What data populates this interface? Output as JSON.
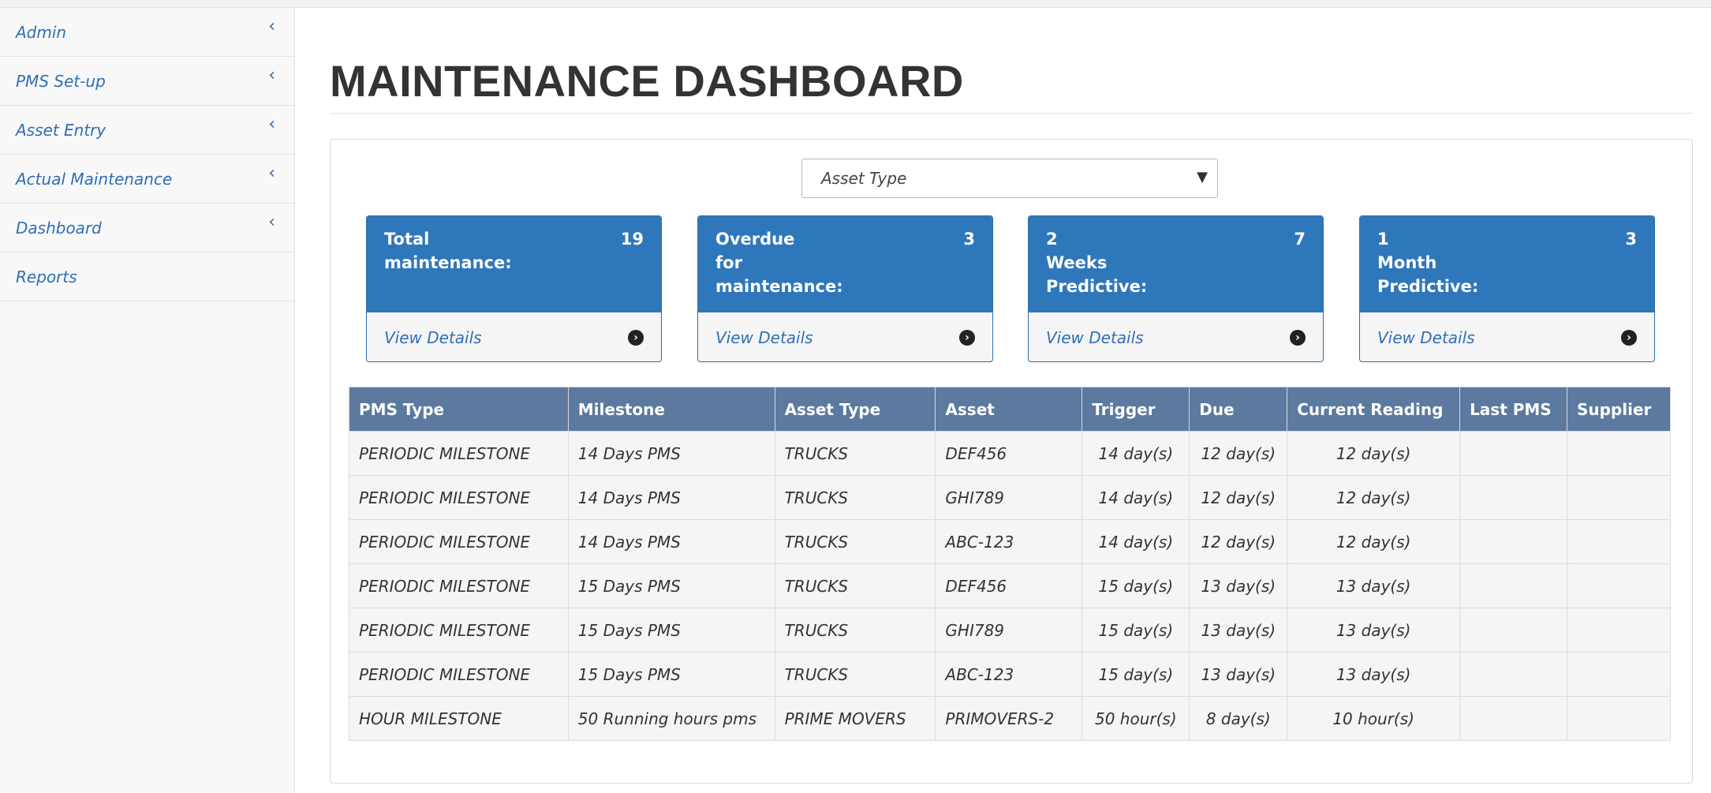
{
  "sidebar": {
    "items": [
      {
        "label": "Admin",
        "chevron": "‹"
      },
      {
        "label": "PMS Set-up",
        "chevron": "‹"
      },
      {
        "label": "Asset Entry",
        "chevron": "‹"
      },
      {
        "label": "Actual Maintenance",
        "chevron": "‹"
      },
      {
        "label": "Dashboard",
        "chevron": "‹"
      },
      {
        "label": "Reports",
        "chevron": ""
      }
    ]
  },
  "header": {
    "title": "MAINTENANCE DASHBOARD"
  },
  "filter": {
    "asset_type_value": "Asset Type"
  },
  "cards": [
    {
      "label": "Total\nmaintenance:",
      "count": "19",
      "link": "View Details"
    },
    {
      "label": "Overdue\nfor\nmaintenance:",
      "count": "3",
      "link": "View Details"
    },
    {
      "label": "2\nWeeks\nPredictive:",
      "count": "7",
      "link": "View Details"
    },
    {
      "label": "1\nMonth\nPredictive:",
      "count": "3",
      "link": "View Details"
    }
  ],
  "table": {
    "headers": [
      "PMS Type",
      "Milestone",
      "Asset Type",
      "Asset",
      "Trigger",
      "Due",
      "Current Reading",
      "Last PMS",
      "Supplier"
    ],
    "rows": [
      [
        "PERIODIC MILESTONE",
        "14 Days PMS",
        "TRUCKS",
        "DEF456",
        "14 day(s)",
        "12 day(s)",
        "12 day(s)",
        "",
        ""
      ],
      [
        "PERIODIC MILESTONE",
        "14 Days PMS",
        "TRUCKS",
        "GHI789",
        "14 day(s)",
        "12 day(s)",
        "12 day(s)",
        "",
        ""
      ],
      [
        "PERIODIC MILESTONE",
        "14 Days PMS",
        "TRUCKS",
        "ABC-123",
        "14 day(s)",
        "12 day(s)",
        "12 day(s)",
        "",
        ""
      ],
      [
        "PERIODIC MILESTONE",
        "15 Days PMS",
        "TRUCKS",
        "DEF456",
        "15 day(s)",
        "13 day(s)",
        "13 day(s)",
        "",
        ""
      ],
      [
        "PERIODIC MILESTONE",
        "15 Days PMS",
        "TRUCKS",
        "GHI789",
        "15 day(s)",
        "13 day(s)",
        "13 day(s)",
        "",
        ""
      ],
      [
        "PERIODIC MILESTONE",
        "15 Days PMS",
        "TRUCKS",
        "ABC-123",
        "15 day(s)",
        "13 day(s)",
        "13 day(s)",
        "",
        ""
      ],
      [
        "HOUR MILESTONE",
        "50 Running hours pms",
        "PRIME MOVERS",
        "PRIMOVERS-2",
        "50 hour(s)",
        "8 day(s)",
        "10 hour(s)",
        "",
        ""
      ]
    ]
  }
}
